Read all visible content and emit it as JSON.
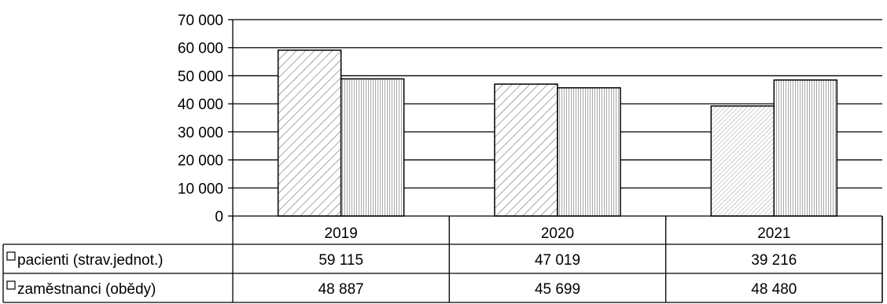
{
  "chart_data": {
    "type": "bar",
    "categories": [
      "2019",
      "2020",
      "2021"
    ],
    "series": [
      {
        "name": "pacienti (strav.jednot.)",
        "values": [
          59115,
          47019,
          39216
        ],
        "value_labels": [
          "59 115",
          "47 019",
          "39 216"
        ],
        "pattern": "diagonal-hatch"
      },
      {
        "name": "zaměstnanci (obědy)",
        "values": [
          48887,
          45699,
          48480
        ],
        "value_labels": [
          "48 887",
          "45 699",
          "48 480"
        ],
        "pattern": "vertical-hatch"
      }
    ],
    "ylim": [
      0,
      70000
    ],
    "yticks": [
      0,
      10000,
      20000,
      30000,
      40000,
      50000,
      60000,
      70000
    ],
    "ytick_labels": [
      "0",
      "10 000",
      "20 000",
      "30 000",
      "40 000",
      "50 000",
      "60 000",
      "70 000"
    ],
    "grid": true,
    "legend": "data-table",
    "xlabel": "",
    "ylabel": ""
  }
}
